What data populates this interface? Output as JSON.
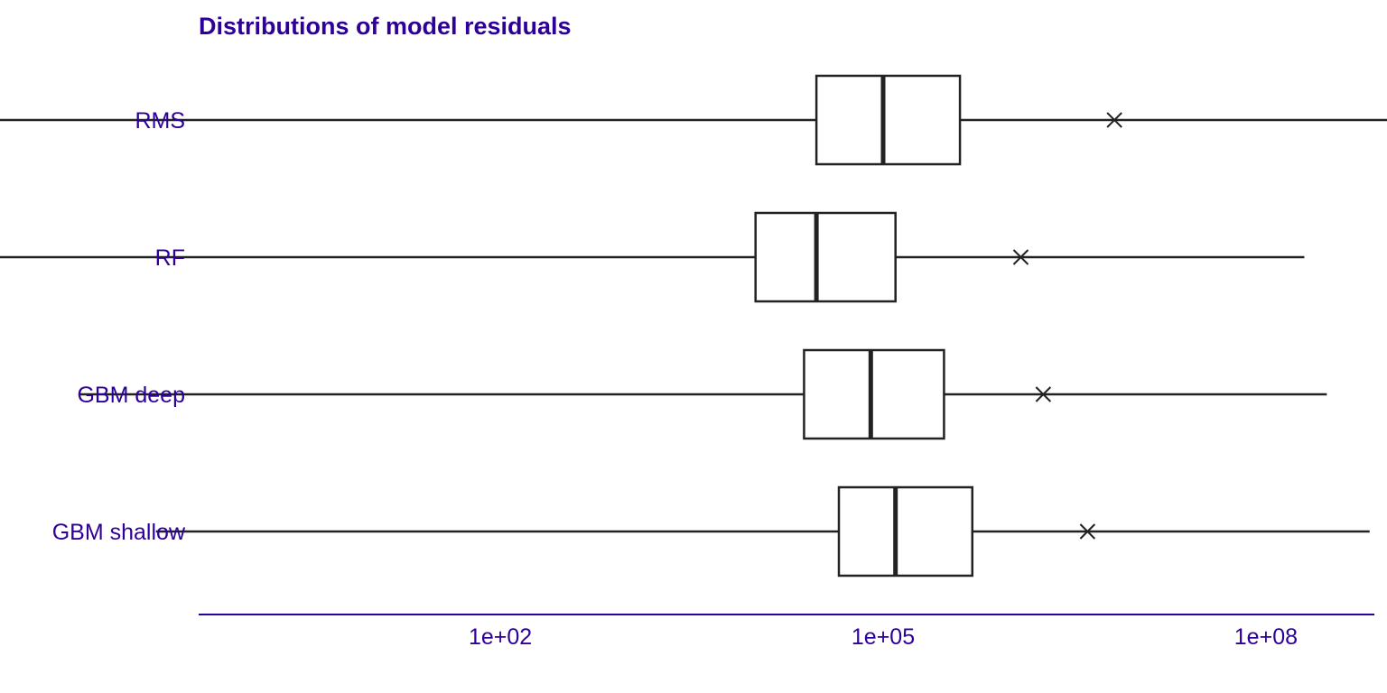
{
  "chart_data": {
    "type": "boxplot",
    "title": "Distributions of model residuals",
    "xlabel": "",
    "ylabel": "",
    "x_scale": "log10",
    "xlim": [
      0.005,
      3000000000.0
    ],
    "x_ticks": [
      {
        "value": 100,
        "label": "1e+02"
      },
      {
        "value": 100000,
        "label": "1e+05"
      },
      {
        "value": 100000000,
        "label": "1e+08"
      }
    ],
    "grid": false,
    "legend": "none",
    "boxes": [
      {
        "name": "RMS",
        "min": 0.01,
        "q1": 30000,
        "median": 100000,
        "q3": 400000,
        "max": 3500000000,
        "mean": 6500000
      },
      {
        "name": "RF",
        "min": 0.011,
        "q1": 10000,
        "median": 30000,
        "q3": 125000,
        "max": 200000000,
        "mean": 1200000
      },
      {
        "name": "GBM deep",
        "min": 0.05,
        "q1": 24000,
        "median": 80000,
        "q3": 300000,
        "max": 300000000,
        "mean": 1800000
      },
      {
        "name": "GBM shallow",
        "min": 0.2,
        "q1": 45000,
        "median": 125000,
        "q3": 500000,
        "max": 650000000,
        "mean": 4000000
      }
    ],
    "colors": {
      "text": "#2e0099",
      "axis": "#2e0099",
      "box_stroke": "#222222",
      "box_fill": "#ffffff"
    }
  }
}
